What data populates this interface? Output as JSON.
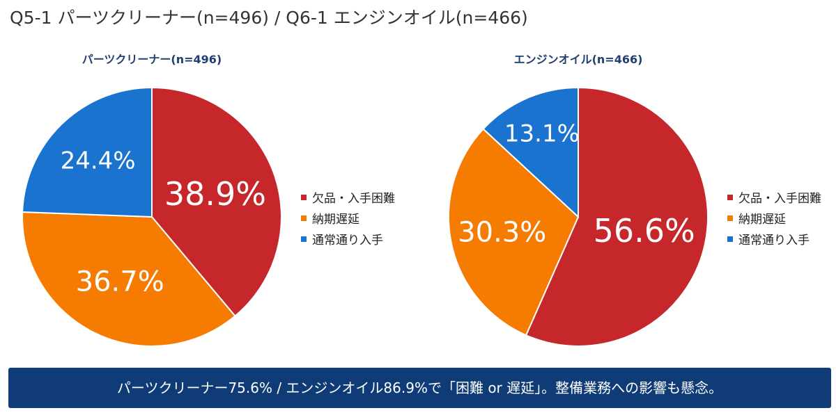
{
  "page_title": "Q5-1 パーツクリーナー(n=496) / Q6-1 エンジンオイル(n=466)",
  "colors": {
    "difficult": "#c6272b",
    "delay": "#f57c00",
    "normal": "#1a73cf",
    "title_text": "#1f3f73",
    "banner_bg": "#0f3c76"
  },
  "chart_data": [
    {
      "type": "pie",
      "title": "パーツクリーナー(n=496)",
      "categories": [
        "欠品・入手困難",
        "納期遅延",
        "通常通り入手"
      ],
      "values": [
        38.9,
        36.7,
        24.4
      ],
      "labels": [
        "38.9%",
        "36.7%",
        "24.4%"
      ],
      "legend_position": "right"
    },
    {
      "type": "pie",
      "title": "エンジンオイル(n=466)",
      "categories": [
        "欠品・入手困難",
        "納期遅延",
        "通常通り入手"
      ],
      "values": [
        56.6,
        30.3,
        13.1
      ],
      "labels": [
        "56.6%",
        "30.3%",
        "13.1%"
      ],
      "legend_position": "right"
    }
  ],
  "banner": {
    "text": "パーツクリーナー75.6% / エンジンオイル86.9%で「困難 or 遅延」。整備業務への影響も懸念。"
  }
}
